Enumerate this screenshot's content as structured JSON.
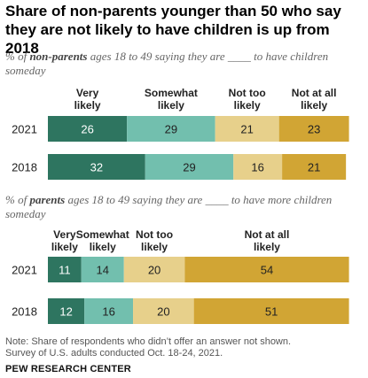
{
  "title": "Share of non-parents younger than 50 who say they are not likely to have children is up from 2018",
  "note": "Note: Share of respondents who didn’t offer an answer not shown.",
  "source": "Survey of U.S. adults conducted Oct. 18-24, 2021.",
  "footer": "PEW RESEARCH CENTER",
  "colors": {
    "very_likely": "#2e7560",
    "somewhat_likely": "#72bfae",
    "not_too_likely": "#e7d08b",
    "not_at_all_likely": "#d1a534"
  },
  "chart_data": [
    {
      "type": "bar",
      "orientation": "horizontal",
      "stacked": true,
      "subtitle": {
        "prefix": "% of ",
        "bold": "non-parents",
        "suffix": " ages 18 to 49 saying they are ____ to have children someday"
      },
      "categories": [
        "2021",
        "2018"
      ],
      "series": [
        {
          "name": "Very likely",
          "values": [
            26,
            32
          ]
        },
        {
          "name": "Somewhat likely",
          "values": [
            29,
            29
          ]
        },
        {
          "name": "Not too likely",
          "values": [
            21,
            16
          ]
        },
        {
          "name": "Not at all likely",
          "values": [
            23,
            21
          ]
        }
      ]
    },
    {
      "type": "bar",
      "orientation": "horizontal",
      "stacked": true,
      "subtitle": {
        "prefix": "% of ",
        "bold": "parents",
        "suffix": " ages 18 to 49 saying they are ____ to have more children someday"
      },
      "categories": [
        "2021",
        "2018"
      ],
      "series": [
        {
          "name": "Very likely",
          "values": [
            11,
            12
          ]
        },
        {
          "name": "Somewhat likely",
          "values": [
            14,
            16
          ]
        },
        {
          "name": "Not too likely",
          "values": [
            20,
            20
          ]
        },
        {
          "name": "Not at all likely",
          "values": [
            54,
            51
          ]
        }
      ]
    }
  ]
}
